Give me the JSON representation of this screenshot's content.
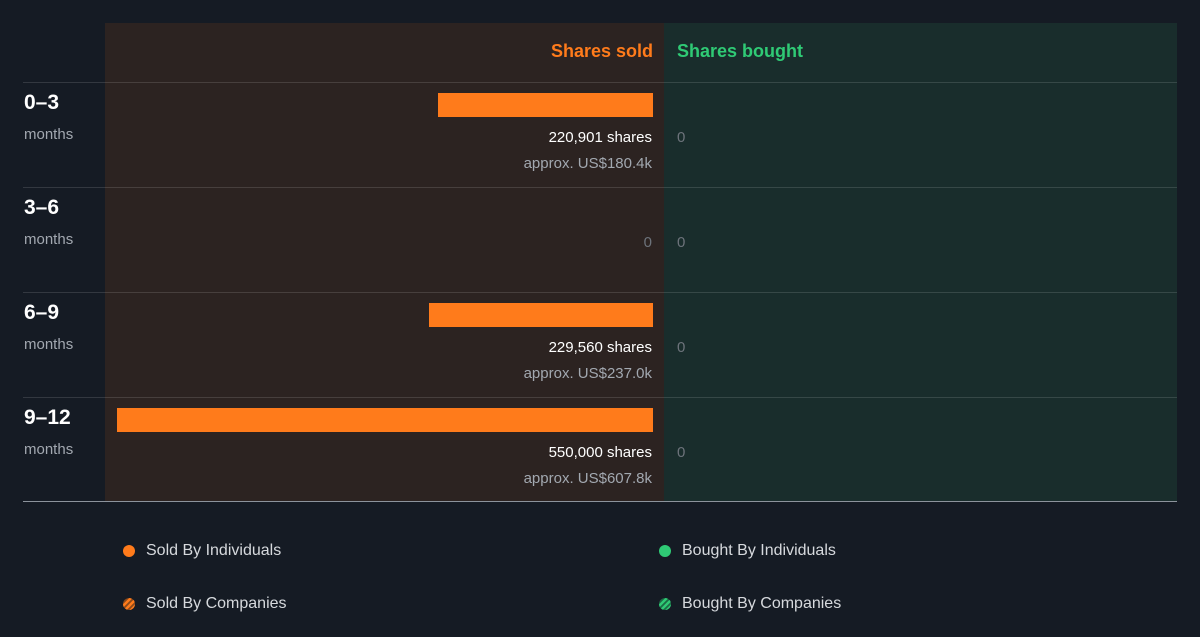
{
  "colors": {
    "sold": "#ff7b1b",
    "bought": "#2fca75",
    "sold_panel_bg": "#2c2321",
    "bought_panel_bg": "#192d2c"
  },
  "header": {
    "sold": "Shares sold",
    "bought": "Shares bought"
  },
  "rows": [
    {
      "period": "0–3",
      "unit": "months",
      "shares_text": "220,901 shares",
      "approx_text": "approx. US$180.4k",
      "bought_text": "0"
    },
    {
      "period": "3–6",
      "unit": "months",
      "sold_zero_text": "0",
      "bought_text": "0"
    },
    {
      "period": "6–9",
      "unit": "months",
      "shares_text": "229,560 shares",
      "approx_text": "approx. US$237.0k",
      "bought_text": "0"
    },
    {
      "period": "9–12",
      "unit": "months",
      "shares_text": "550,000 shares",
      "approx_text": "approx. US$607.8k",
      "bought_text": "0"
    }
  ],
  "legend": {
    "sold_individuals": "Sold By Individuals",
    "bought_individuals": "Bought By Individuals",
    "sold_companies": "Sold By Companies",
    "bought_companies": "Bought By Companies"
  },
  "chart_data": {
    "type": "bar",
    "categories": [
      "0–3 months",
      "3–6 months",
      "6–9 months",
      "9–12 months"
    ],
    "series": [
      {
        "name": "Shares sold",
        "values": [
          220901,
          0,
          229560,
          550000
        ],
        "value_usd_k": [
          180.4,
          0,
          237.0,
          607.8
        ]
      },
      {
        "name": "Shares bought",
        "values": [
          0,
          0,
          0,
          0
        ]
      }
    ],
    "legend": [
      "Sold By Individuals",
      "Sold By Companies",
      "Bought By Individuals",
      "Bought By Companies"
    ]
  }
}
